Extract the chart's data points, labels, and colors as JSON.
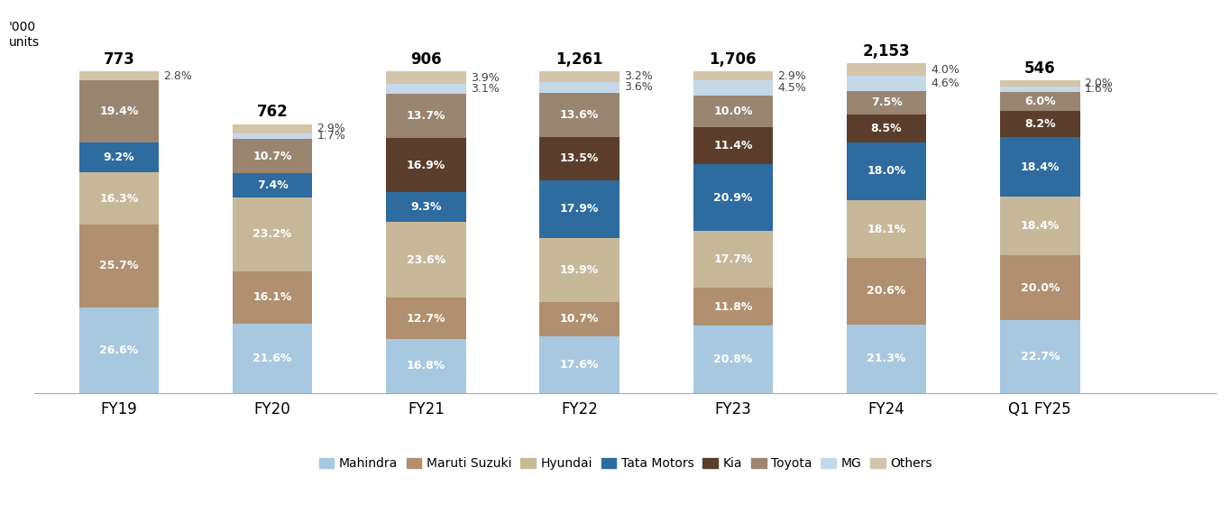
{
  "categories": [
    "FY19",
    "FY20",
    "FY21",
    "FY22",
    "FY23",
    "FY24",
    "Q1 FY25"
  ],
  "totals": [
    "773",
    "762",
    "906",
    "1,261",
    "1,706",
    "2,153",
    "546"
  ],
  "series_order": [
    "Mahindra",
    "Maruti Suzuki",
    "Hyundai",
    "Tata Motors",
    "Kia",
    "Toyota",
    "MG",
    "Others"
  ],
  "series": {
    "Mahindra": [
      26.6,
      21.6,
      16.8,
      17.6,
      20.8,
      21.3,
      22.7
    ],
    "Maruti Suzuki": [
      25.7,
      16.1,
      12.7,
      10.7,
      11.8,
      20.6,
      20.0
    ],
    "Hyundai": [
      16.3,
      23.2,
      23.6,
      19.9,
      17.7,
      18.1,
      18.4
    ],
    "Tata Motors": [
      9.2,
      7.4,
      9.3,
      17.9,
      20.9,
      18.0,
      18.4
    ],
    "Kia": [
      0.0,
      0.0,
      16.9,
      13.5,
      11.4,
      8.5,
      8.2
    ],
    "Toyota": [
      19.4,
      10.7,
      13.7,
      13.6,
      10.0,
      7.5,
      6.0
    ],
    "MG": [
      0.0,
      1.7,
      3.1,
      3.6,
      4.5,
      4.6,
      1.6
    ],
    "Others": [
      2.8,
      2.9,
      3.9,
      3.2,
      2.9,
      4.0,
      2.0
    ]
  },
  "colors": {
    "Mahindra": "#a8c8e0",
    "Maruti Suzuki": "#b09070",
    "Hyundai": "#c8b89a",
    "Tata Motors": "#2e6b9e",
    "Kia": "#5a3e2b",
    "Toyota": "#9a8570",
    "MG": "#c5d8e8",
    "Others": "#d4c4aa"
  },
  "outside_series": [
    "MG",
    "Others"
  ],
  "inside_text_colors": {
    "Mahindra": "white",
    "Maruti Suzuki": "white",
    "Hyundai": "white",
    "Tata Motors": "white",
    "Kia": "white",
    "Toyota": "white",
    "MG": "#555555",
    "Others": "#555555"
  },
  "background_color": "#ffffff",
  "bar_width": 0.52,
  "ylim": [
    0,
    118
  ],
  "xlabel_fontsize": 12,
  "inside_label_fontsize": 9,
  "outside_label_fontsize": 9,
  "total_fontsize": 12,
  "legend_fontsize": 10
}
